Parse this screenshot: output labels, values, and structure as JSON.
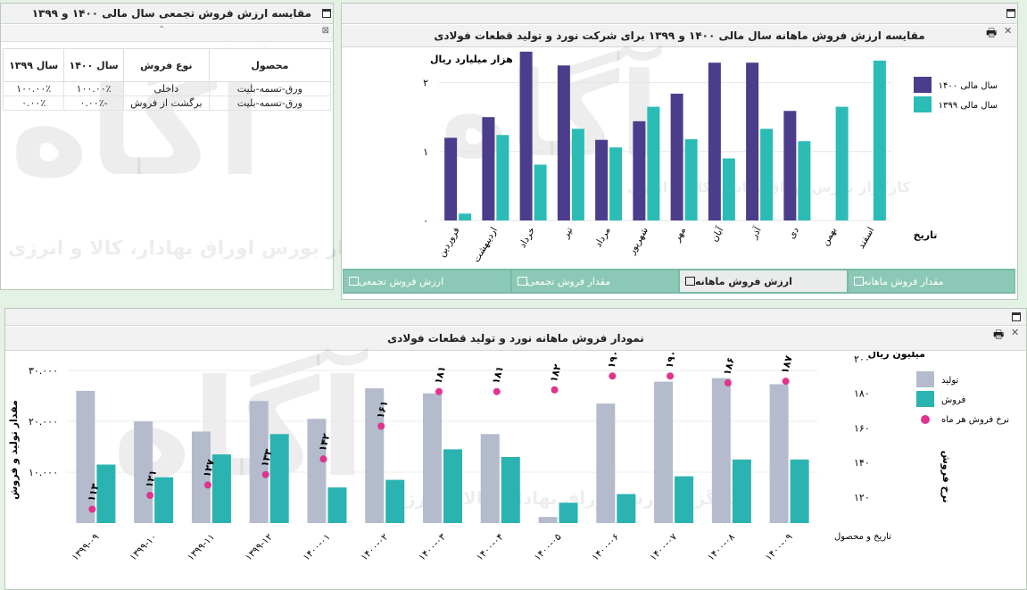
{
  "table_panel": {
    "title": "مقایسه ارزش فروش تجمعی سال مالی ۱۴۰۰ و ۱۳۹۹",
    "headers": [
      "محصول",
      "نوع فروش",
      "سال ۱۴۰۰",
      "سال ۱۳۹۹"
    ],
    "rows": [
      [
        "ورق-تسمه-بلیت",
        "داخلی",
        "۱۰۰.۰۰٪",
        "۱۰۰.۰۰٪"
      ],
      [
        "ورق-تسمه-بلیت",
        "برگشت از فروش",
        "-۰.۰۰٪",
        "۰.۰۰٪"
      ]
    ]
  },
  "watermark": {
    "logo": "آگاه",
    "text": "کارگزار بورس اوراق بهادار، کالا و انرژی"
  },
  "monthly_panel": {
    "title": "مقایسه ارزش فروش ماهانه سال مالی ۱۴۰۰ و ۱۳۹۹ برای شرکت نورد و تولید قطعات فولادی",
    "tabs": [
      {
        "label": "ارزش فروش تجمعی",
        "active": false
      },
      {
        "label": "مقدار فروش تجمعی",
        "active": false
      },
      {
        "label": "ارزش فروش ماهانه",
        "active": true
      },
      {
        "label": "مقدار فروش ماهانه",
        "active": false
      }
    ]
  },
  "bottom_panel": {
    "title": "نمودار فروش ماهانه نورد و تولید قطعات فولادی"
  },
  "chart_data": [
    {
      "type": "bar",
      "title": "مقایسه ارزش فروش ماهانه سال مالی ۱۴۰۰ و ۱۳۹۹ برای شرکت نورد و تولید قطعات فولادی",
      "ylabel": "هزار میلیارد ریال",
      "xlabel": "تاریخ",
      "ylim": [
        0,
        2.5
      ],
      "yticks": [
        0,
        1,
        2
      ],
      "ytick_labels": [
        "۰",
        "۱",
        "۲"
      ],
      "legend_position": "right",
      "categories": [
        "فروردین",
        "اردیبهشت",
        "خرداد",
        "تیر",
        "مرداد",
        "شهریور",
        "مهر",
        "آبان",
        "آذر",
        "دی",
        "بهمن",
        "اسفند"
      ],
      "series": [
        {
          "name": "سال مالی ۱۴۰۰",
          "color": "#4b3d8c",
          "values": [
            1.2,
            1.5,
            2.45,
            2.25,
            1.17,
            1.44,
            1.84,
            2.29,
            2.29,
            1.59,
            null,
            null
          ]
        },
        {
          "name": "سال مالی ۱۳۹۹",
          "color": "#2bbcb6",
          "values": [
            0.1,
            1.24,
            0.81,
            1.33,
            1.06,
            1.65,
            1.18,
            0.9,
            1.33,
            1.15,
            1.65,
            2.32
          ]
        }
      ]
    },
    {
      "type": "bar",
      "title": "نمودار فروش ماهانه نورد و تولید قطعات فولادی",
      "categories": [
        "۱۳۹۹-۰۹",
        "۱۳۹۹-۱۰",
        "۱۳۹۹-۱۱",
        "۱۳۹۹-۱۲",
        "۱۴۰۰-۰۱",
        "۱۴۰۰-۰۲",
        "۱۴۰۰-۰۳",
        "۱۴۰۰-۰۴",
        "۱۴۰۰-۰۵",
        "۱۴۰۰-۰۶",
        "۱۴۰۰-۰۷",
        "۱۴۰۰-۰۸",
        "۱۴۰۰-۰۹"
      ],
      "xlabel": "تاریخ و محصول",
      "ylabel_left": "مقدار تولید و فروش",
      "ylim_left": [
        0,
        33000
      ],
      "yticks_left": [
        10000,
        20000,
        30000
      ],
      "ytick_labels_left": [
        "۱۰.۰۰۰",
        "۲۰.۰۰۰",
        "۳۰.۰۰۰"
      ],
      "ylabel_right": "نرخ فروش",
      "ylabel_right_unit": "میلیون ریال",
      "ylim_right": [
        105,
        202
      ],
      "yticks_right": [
        120,
        140,
        160,
        180,
        200
      ],
      "ytick_labels_right": [
        "۱۲۰",
        "۱۴۰",
        "۱۶۰",
        "۱۸۰",
        "۲۰۰"
      ],
      "legend_position": "right",
      "series": [
        {
          "name": "تولید",
          "color": "#b3bbcd",
          "values": [
            26000,
            20000,
            18000,
            24000,
            20500,
            26500,
            25500,
            17500,
            1200,
            23500,
            27800,
            28500,
            27300
          ]
        },
        {
          "name": "فروش",
          "color": "#2ab3b0",
          "values": [
            11500,
            9000,
            13500,
            17500,
            7000,
            8500,
            14500,
            13000,
            4000,
            5700,
            9200,
            12500,
            12500
          ]
        },
        {
          "name": "نرخ فروش هر ماه",
          "type": "scatter",
          "color": "#e0338e",
          "values": [
            113,
            121,
            127,
            133,
            142,
            161,
            181,
            181,
            182,
            190,
            190,
            186,
            187
          ],
          "labels": [
            "۱۱۳",
            "۱۲۱",
            "۱۲۷",
            "۱۳۳",
            "۱۴۲",
            "۱۶۱",
            "۱۸۱",
            "۱۸۱",
            "۱۸۲",
            "۱۹۰",
            "۱۹۰",
            "۱۸۶",
            "۱۸۷"
          ]
        }
      ]
    }
  ]
}
